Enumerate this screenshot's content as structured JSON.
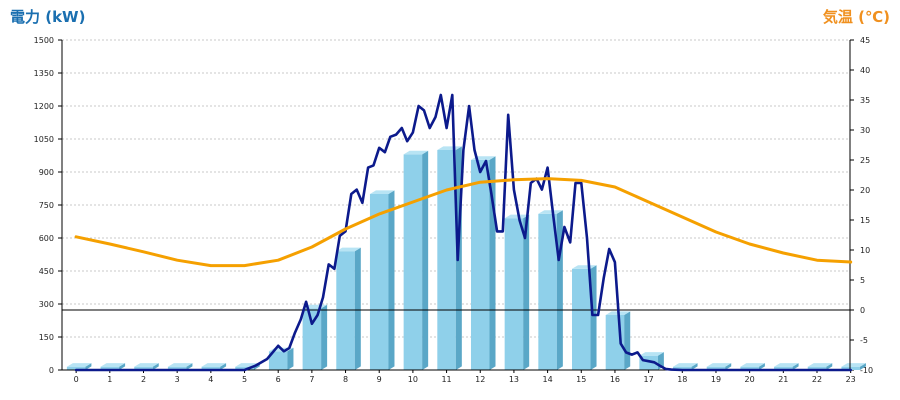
{
  "titles": {
    "left": "電力 (kW)",
    "right": "気温 (℃)"
  },
  "colors": {
    "left_title": "#1a6fb0",
    "right_title": "#f0901e",
    "bar_front": "#8fd0ea",
    "bar_side": "#5aa7c7",
    "bar_top": "#b8e4f4",
    "power_line": "#0c1a8c",
    "temp_line": "#f5a000",
    "grid": "#c8c8c8",
    "axis": "#000000"
  },
  "chart_data": {
    "type": "bar+line",
    "x_tick_labels": [
      "0",
      "1",
      "2",
      "3",
      "4",
      "5",
      "6",
      "7",
      "8",
      "9",
      "10",
      "11",
      "12",
      "13",
      "14",
      "15",
      "16",
      "17",
      "18",
      "19",
      "20",
      "21",
      "22",
      "23"
    ],
    "y_left": {
      "label": "電力 (kW)",
      "range": [
        0,
        1500
      ],
      "ticks": [
        "0",
        "150",
        "300",
        "450",
        "600",
        "750",
        "900",
        "1050",
        "1200",
        "1350",
        "1500"
      ]
    },
    "y_right": {
      "label": "気温 (℃)",
      "range": [
        -10,
        45
      ],
      "ticks": [
        "-10",
        "-5",
        "0",
        "5",
        "10",
        "15",
        "20",
        "25",
        "30",
        "35",
        "40",
        "45"
      ]
    },
    "grid": true,
    "reference_line_y_right": 0,
    "series": [
      {
        "type": "bar",
        "axis": "left",
        "values": [
          15,
          15,
          15,
          15,
          15,
          15,
          85,
          280,
          540,
          800,
          980,
          1000,
          955,
          690,
          710,
          460,
          250,
          65,
          15,
          15,
          15,
          15,
          15,
          15
        ]
      },
      {
        "type": "line",
        "axis": "left",
        "x": [
          0,
          1,
          2,
          3,
          4,
          5,
          5.33,
          5.67,
          6,
          6.17,
          6.33,
          6.5,
          6.67,
          6.83,
          7,
          7.17,
          7.33,
          7.5,
          7.67,
          7.83,
          8,
          8.17,
          8.33,
          8.5,
          8.67,
          8.83,
          9,
          9.17,
          9.33,
          9.5,
          9.67,
          9.83,
          10,
          10.17,
          10.33,
          10.5,
          10.67,
          10.83,
          11,
          11.17,
          11.33,
          11.5,
          11.67,
          11.83,
          12,
          12.17,
          12.33,
          12.5,
          12.67,
          12.83,
          13,
          13.17,
          13.33,
          13.5,
          13.67,
          13.83,
          14,
          14.17,
          14.33,
          14.5,
          14.67,
          14.83,
          15,
          15.17,
          15.33,
          15.5,
          15.67,
          15.83,
          16,
          16.17,
          16.33,
          16.5,
          16.67,
          16.83,
          17,
          17.17,
          17.33,
          17.5,
          17.67,
          18,
          19,
          20,
          21,
          22,
          23
        ],
        "values": [
          0,
          0,
          0,
          0,
          0,
          0,
          20,
          50,
          110,
          85,
          100,
          170,
          230,
          310,
          210,
          250,
          330,
          480,
          460,
          610,
          630,
          800,
          820,
          760,
          920,
          930,
          1010,
          990,
          1060,
          1070,
          1100,
          1040,
          1080,
          1200,
          1180,
          1100,
          1150,
          1250,
          1100,
          1250,
          500,
          1000,
          1200,
          1000,
          900,
          950,
          800,
          630,
          630,
          1160,
          820,
          680,
          600,
          850,
          870,
          820,
          920,
          700,
          500,
          650,
          580,
          850,
          850,
          600,
          250,
          250,
          420,
          550,
          490,
          120,
          80,
          70,
          80,
          45,
          40,
          35,
          20,
          5,
          2,
          0,
          0,
          0,
          0,
          0,
          0
        ]
      },
      {
        "type": "line",
        "axis": "right",
        "x": [
          0,
          1,
          2,
          3,
          4,
          5,
          6,
          7,
          8,
          9,
          10,
          11,
          12,
          13,
          14,
          15,
          16,
          17,
          18,
          19,
          20,
          21,
          22,
          23
        ],
        "values": [
          12.2,
          11,
          9.7,
          8.3,
          7.4,
          7.4,
          8.3,
          10.5,
          13.5,
          16,
          18,
          20,
          21.3,
          21.7,
          21.9,
          21.6,
          20.5,
          18,
          15.5,
          13,
          11,
          9.5,
          8.3,
          8
        ]
      }
    ]
  }
}
